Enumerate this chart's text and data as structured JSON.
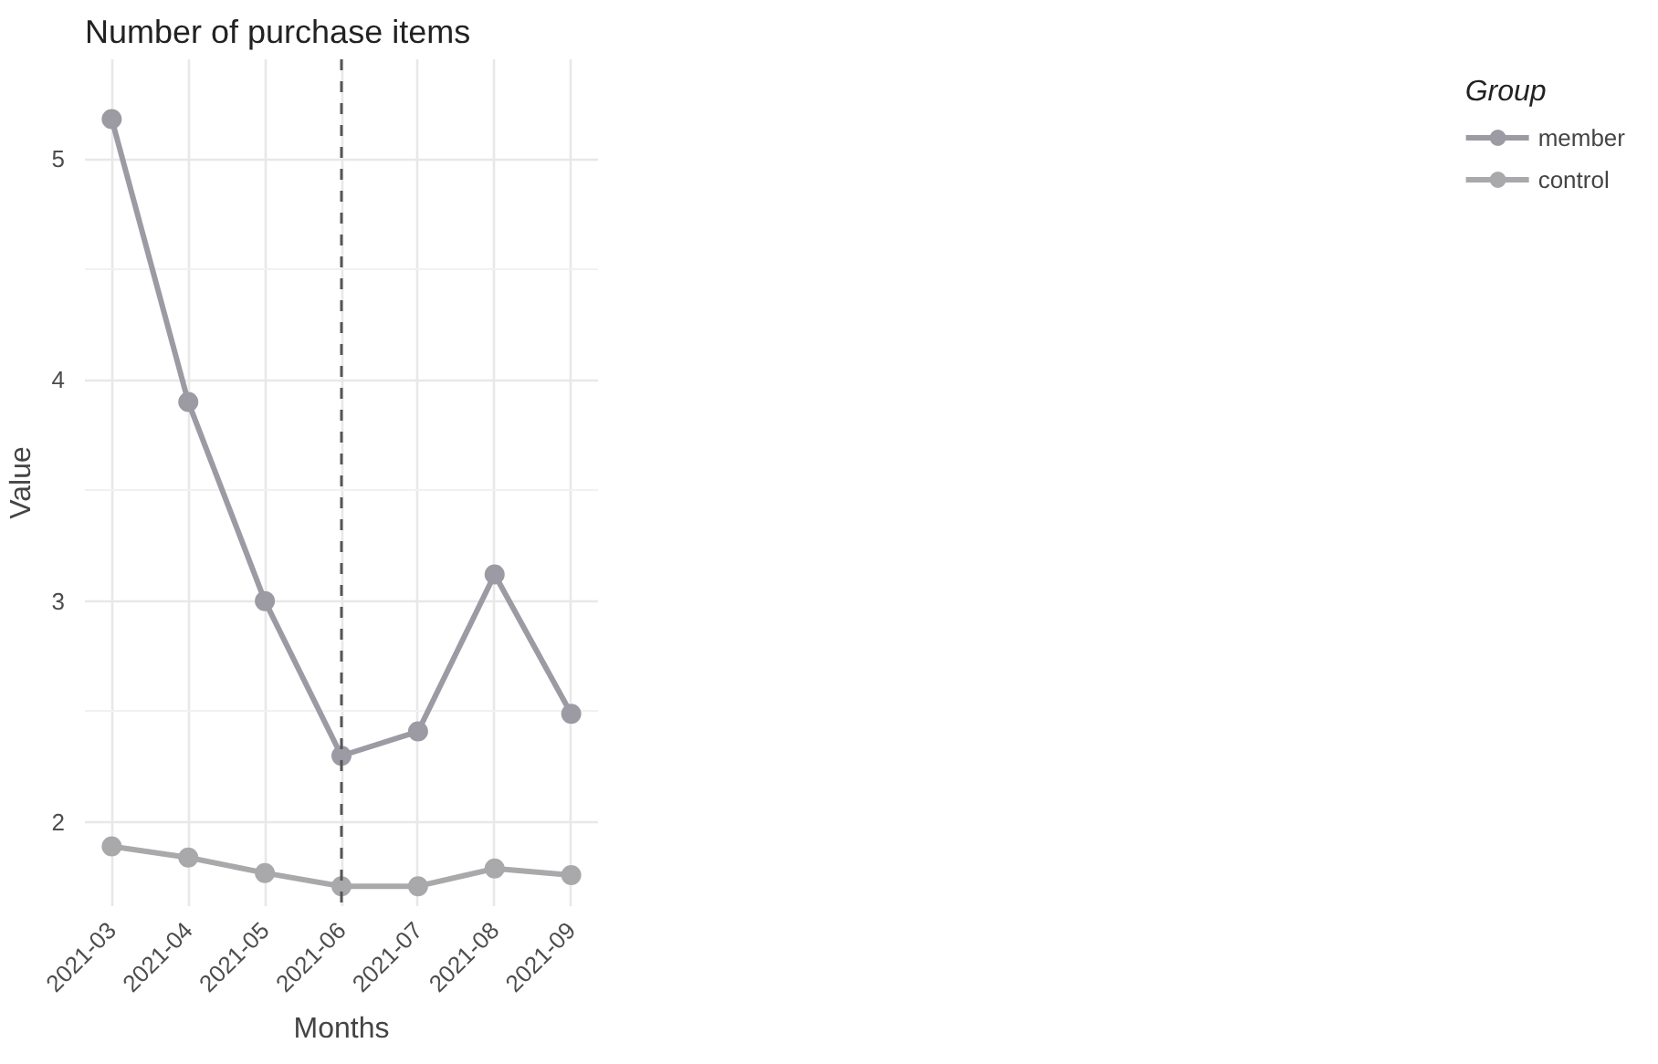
{
  "chart_data": {
    "type": "line",
    "title": "Number of purchase items",
    "xlabel": "Months",
    "ylabel": "Value",
    "legend_title": "Group",
    "categories": [
      "2021-03",
      "2021-04",
      "2021-05",
      "2021-06",
      "2021-07",
      "2021-08",
      "2021-09"
    ],
    "series": [
      {
        "name": "member",
        "color": "#9c9aa3",
        "values": [
          5.18,
          3.9,
          3.0,
          2.3,
          2.41,
          3.12,
          2.49
        ]
      },
      {
        "name": "control",
        "color": "#a9a9ac",
        "values": [
          1.89,
          1.84,
          1.77,
          1.71,
          1.71,
          1.79,
          1.76
        ]
      }
    ],
    "ylim": [
      1.62,
      5.45
    ],
    "yticks": [
      2,
      3,
      4,
      5
    ],
    "ref_lines": [
      {
        "axis": "x",
        "value": "2021-06",
        "color": "#555555",
        "line_style": "dashed"
      }
    ],
    "grid": true,
    "legend": "right",
    "marker": "circle",
    "line_style": "solid"
  }
}
